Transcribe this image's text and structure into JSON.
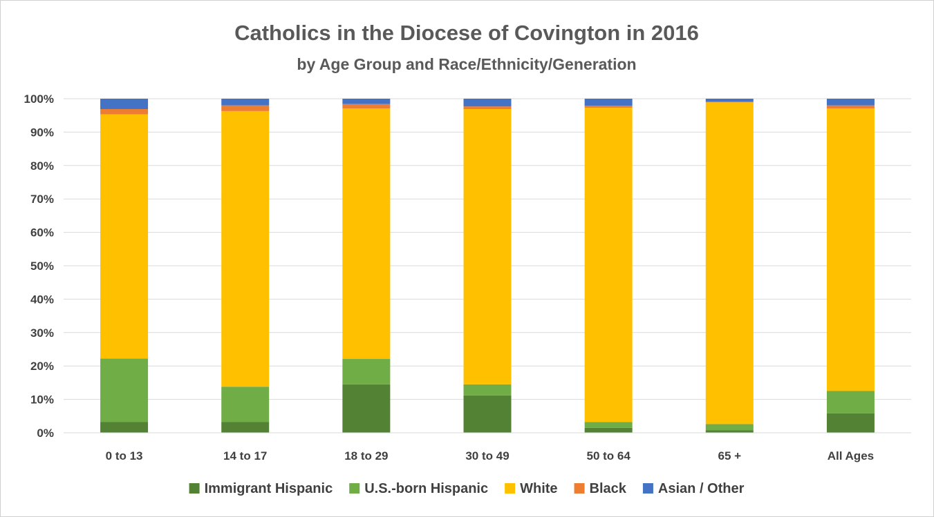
{
  "chart_data": {
    "type": "bar",
    "stacked": true,
    "percent_stacked": true,
    "title": "Catholics in the Diocese of Covington in 2016",
    "subtitle": "by Age Group and Race/Ethnicity/Generation",
    "categories": [
      "0 to 13",
      "14 to 17",
      "18 to 29",
      "30 to 49",
      "50 to 64",
      "65 +",
      "All Ages"
    ],
    "series": [
      {
        "name": "Immigrant Hispanic",
        "color": "#548235",
        "values": [
          3.2,
          3.2,
          14.5,
          11.2,
          1.5,
          0.8,
          5.8
        ]
      },
      {
        "name": "U.S.-born Hispanic",
        "color": "#70ad47",
        "values": [
          19.0,
          10.6,
          7.6,
          3.3,
          1.7,
          1.8,
          6.7
        ]
      },
      {
        "name": "White",
        "color": "#ffc000",
        "values": [
          73.1,
          82.5,
          75.0,
          82.4,
          94.1,
          96.3,
          84.6
        ]
      },
      {
        "name": "Black",
        "color": "#ed7d31",
        "values": [
          1.6,
          1.7,
          1.3,
          0.8,
          0.6,
          0.2,
          0.9
        ]
      },
      {
        "name": "Asian / Other",
        "color": "#4472c4",
        "values": [
          3.1,
          2.0,
          1.6,
          2.3,
          2.1,
          0.9,
          2.0
        ]
      }
    ],
    "yaxis": {
      "min": 0,
      "max": 100,
      "step": 10,
      "tick_labels": [
        "0%",
        "10%",
        "20%",
        "30%",
        "40%",
        "50%",
        "60%",
        "70%",
        "80%",
        "90%",
        "100%"
      ]
    },
    "grid": true,
    "legend_position": "bottom"
  }
}
